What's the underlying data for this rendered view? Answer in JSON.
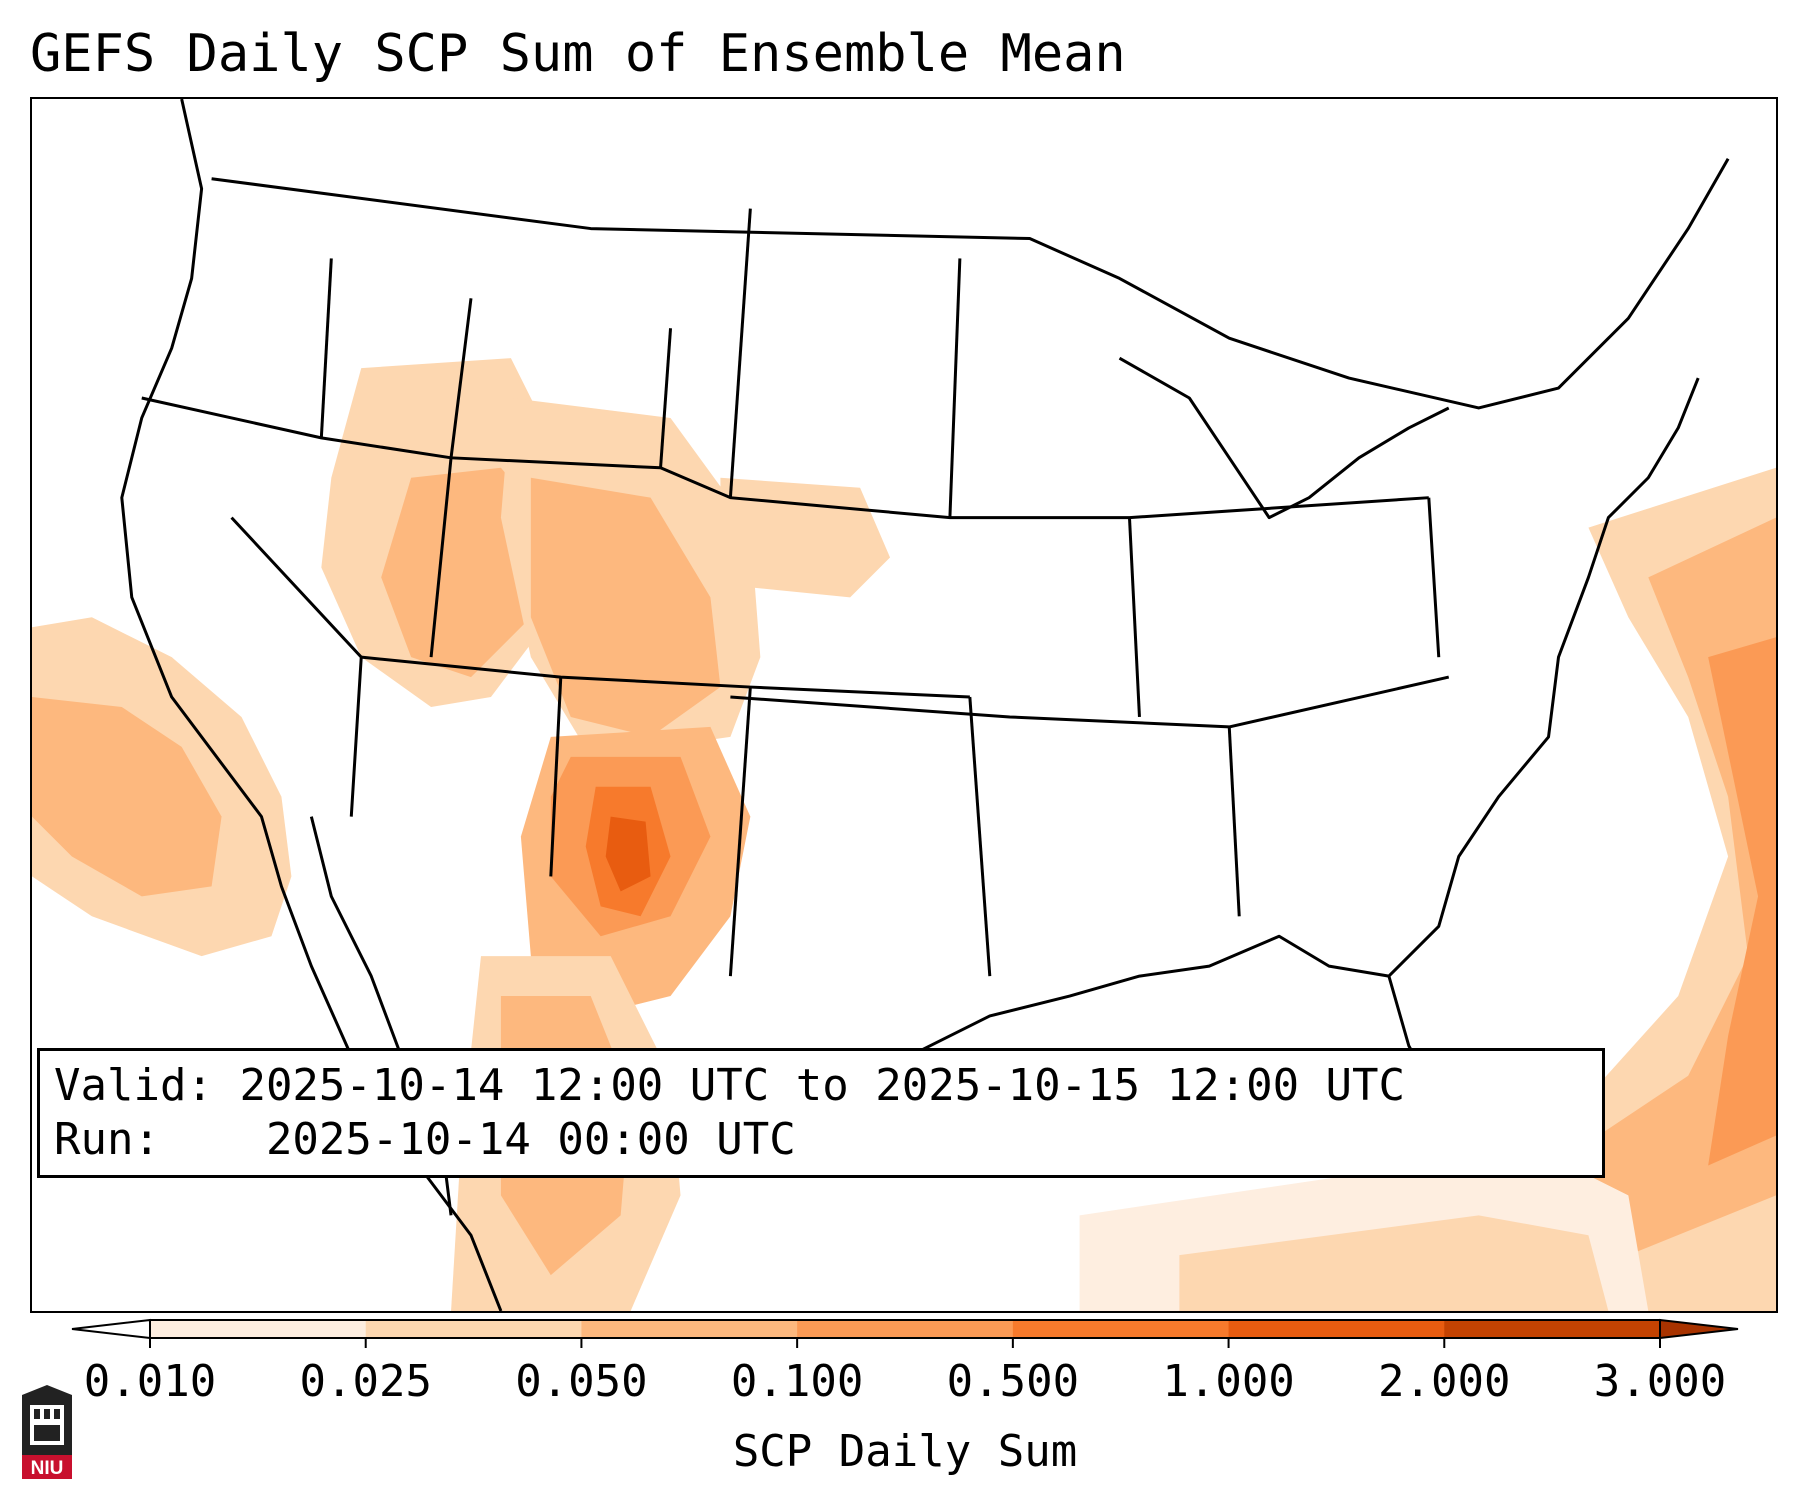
{
  "title": "GEFS Daily SCP Sum of Ensemble Mean",
  "info": {
    "valid_label": "Valid:",
    "valid_value": "2025-10-14 12:00 UTC to 2025-10-15 12:00 UTC",
    "run_label": "Run:",
    "run_value": "2025-10-14 00:00 UTC"
  },
  "colorbar": {
    "label": "SCP Daily Sum",
    "ticks": [
      "0.010",
      "0.025",
      "0.050",
      "0.100",
      "0.500",
      "1.000",
      "2.000",
      "3.000"
    ],
    "colors": [
      "#feeee0",
      "#fdd7b0",
      "#fdb87e",
      "#fb9a55",
      "#f77a2c",
      "#e85c10",
      "#c44302"
    ],
    "extend_low_color": "#ffffff",
    "extend_high_color": "#a83300"
  },
  "logo": {
    "text": "NIU",
    "icon": "niu-logo-icon"
  }
}
